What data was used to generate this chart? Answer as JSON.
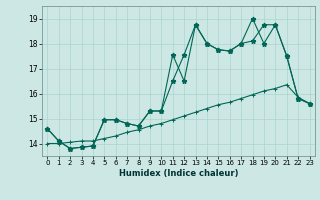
{
  "xlabel": "Humidex (Indice chaleur)",
  "background_color": "#cde8e4",
  "grid_color": "#a8d4ce",
  "line_color": "#006655",
  "xlim": [
    -0.5,
    23.5
  ],
  "ylim": [
    13.5,
    19.5
  ],
  "xticks": [
    0,
    1,
    2,
    3,
    4,
    5,
    6,
    7,
    8,
    9,
    10,
    11,
    12,
    13,
    14,
    15,
    16,
    17,
    18,
    19,
    20,
    21,
    22,
    23
  ],
  "yticks": [
    14,
    15,
    16,
    17,
    18,
    19
  ],
  "series1_x": [
    0,
    1,
    2,
    3,
    4,
    5,
    6,
    7,
    8,
    9,
    10,
    11,
    12,
    13,
    14,
    15,
    16,
    17,
    18,
    19,
    20,
    21,
    22,
    23
  ],
  "series1_y": [
    14.6,
    14.1,
    13.8,
    13.85,
    13.9,
    14.95,
    14.95,
    14.8,
    14.7,
    15.3,
    15.3,
    17.55,
    16.5,
    18.75,
    18.0,
    17.75,
    17.7,
    18.0,
    19.0,
    18.0,
    18.75,
    17.5,
    15.8,
    15.6
  ],
  "series2_x": [
    0,
    1,
    2,
    3,
    4,
    5,
    6,
    7,
    8,
    9,
    10,
    11,
    12,
    13,
    14,
    15,
    16,
    17,
    18,
    19,
    20,
    21,
    22,
    23
  ],
  "series2_y": [
    14.0,
    14.0,
    14.05,
    14.1,
    14.1,
    14.2,
    14.3,
    14.45,
    14.55,
    14.7,
    14.8,
    14.95,
    15.1,
    15.25,
    15.4,
    15.55,
    15.65,
    15.8,
    15.95,
    16.1,
    16.2,
    16.35,
    15.85,
    15.6
  ],
  "series3_x": [
    0,
    1,
    2,
    3,
    4,
    5,
    6,
    7,
    8,
    9,
    10,
    11,
    12,
    13,
    14,
    15,
    16,
    17,
    18,
    19,
    20,
    21,
    22,
    23
  ],
  "series3_y": [
    14.6,
    14.1,
    13.8,
    13.85,
    13.9,
    14.95,
    14.95,
    14.8,
    14.7,
    15.3,
    15.3,
    16.5,
    17.55,
    18.75,
    18.0,
    17.75,
    17.7,
    18.0,
    18.1,
    18.75,
    18.75,
    17.5,
    15.8,
    15.6
  ]
}
